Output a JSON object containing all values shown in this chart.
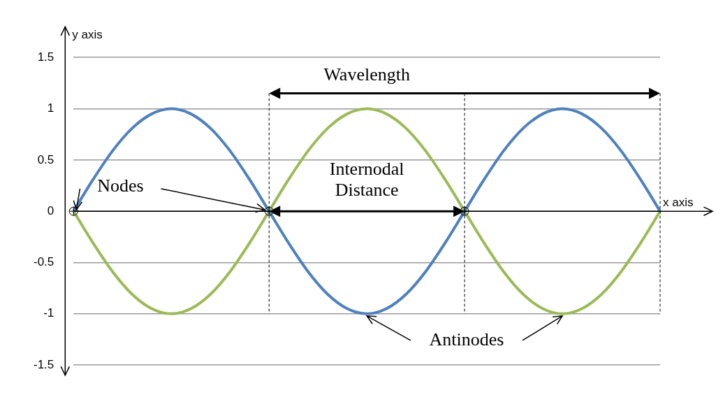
{
  "chart_data": {
    "type": "line",
    "xlabel": "x axis",
    "ylabel": "y axis",
    "categories": [
      null,
      null,
      null,
      null,
      null,
      null,
      null,
      null,
      null,
      null,
      null,
      null,
      null,
      null,
      null,
      null,
      null,
      null,
      null,
      null,
      null,
      null,
      null,
      null,
      null,
      null,
      null,
      null,
      null,
      null,
      null
    ],
    "series": [
      {
        "color": "#4f81bd",
        "values": [
          0,
          0.31,
          0.59,
          0.81,
          0.95,
          1,
          0.95,
          0.81,
          0.59,
          0.31,
          0,
          -0.31,
          -0.59,
          -0.81,
          -0.95,
          -1,
          -0.95,
          -0.81,
          -0.59,
          -0.31,
          0,
          0.31,
          0.59,
          0.81,
          0.95,
          1,
          0.95,
          0.81,
          0.59,
          0.31,
          0
        ]
      },
      {
        "color": "#9bbb59",
        "values": [
          0,
          -0.31,
          -0.59,
          -0.81,
          -0.95,
          -1,
          -0.95,
          -0.81,
          -0.59,
          -0.31,
          0,
          0.31,
          0.59,
          0.81,
          0.95,
          1,
          0.95,
          0.81,
          0.59,
          0.31,
          0,
          -0.31,
          -0.59,
          -0.81,
          -0.95,
          -1,
          -0.95,
          -0.81,
          -0.59,
          -0.31,
          0
        ]
      }
    ],
    "ylim": [
      -1.6,
      1.8
    ],
    "yticks": [
      -1.5,
      -1,
      -0.5,
      0,
      0.5,
      1,
      1.5
    ],
    "grid": "y",
    "legend": false,
    "marker": "none",
    "line_style": "solid",
    "tick_labels": "y",
    "annotations": [
      "Wavelength",
      "Internodal Distance",
      "Nodes",
      "Antinodes"
    ]
  }
}
